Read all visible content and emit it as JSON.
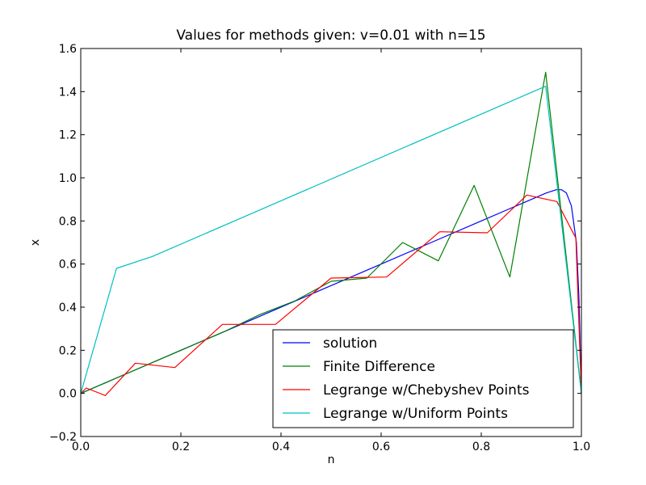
{
  "chart_data": {
    "type": "line",
    "title": "Values for methods given: v=0.01 with n=15",
    "xlabel": "n",
    "ylabel": "x",
    "xlim": [
      0.0,
      1.0
    ],
    "ylim": [
      -0.2,
      1.6
    ],
    "xticks": [
      "0.0",
      "0.2",
      "0.4",
      "0.6",
      "0.8",
      "1.0"
    ],
    "yticks": [
      "−0.2",
      "0.0",
      "0.2",
      "0.4",
      "0.6",
      "0.8",
      "1.0",
      "1.2",
      "1.4",
      "1.6"
    ],
    "grid": false,
    "legend_position": "lower-right",
    "series": [
      {
        "name": "solution",
        "color": "#0000ff",
        "x": [
          0.0,
          0.1,
          0.2,
          0.3,
          0.4,
          0.5,
          0.6,
          0.7,
          0.8,
          0.85,
          0.9,
          0.93,
          0.95,
          0.96,
          0.97,
          0.98,
          0.99,
          0.995,
          1.0
        ],
        "y": [
          0.0,
          0.1,
          0.2,
          0.3,
          0.4,
          0.5,
          0.6,
          0.7,
          0.8,
          0.85,
          0.9,
          0.93,
          0.945,
          0.945,
          0.93,
          0.87,
          0.7,
          0.45,
          0.0
        ]
      },
      {
        "name": "Finite Difference",
        "color": "#008000",
        "x": [
          0.0,
          0.0714,
          0.1429,
          0.2143,
          0.2857,
          0.3571,
          0.4286,
          0.5,
          0.5714,
          0.6429,
          0.7143,
          0.7857,
          0.8571,
          0.9286,
          1.0
        ],
        "y": [
          0.0,
          0.0714,
          0.1429,
          0.2143,
          0.2857,
          0.365,
          0.43,
          0.52,
          0.535,
          0.7,
          0.615,
          0.965,
          0.54,
          1.49,
          0.0
        ]
      },
      {
        "name": "Legrange w/Chebyshev Points",
        "color": "#ff0000",
        "x": [
          0.0,
          0.011,
          0.049,
          0.109,
          0.188,
          0.283,
          0.389,
          0.5,
          0.611,
          0.717,
          0.812,
          0.891,
          0.951,
          0.989,
          1.0
        ],
        "y": [
          0.0,
          0.025,
          -0.01,
          0.14,
          0.12,
          0.32,
          0.32,
          0.535,
          0.54,
          0.75,
          0.745,
          0.92,
          0.89,
          0.72,
          0.0
        ]
      },
      {
        "name": "Legrange w/Uniform Points",
        "color": "#00bfbf",
        "x": [
          0.0,
          0.0714,
          0.1429,
          0.9286,
          1.0
        ],
        "y": [
          0.0,
          0.58,
          0.635,
          1.425,
          0.0
        ]
      }
    ]
  }
}
